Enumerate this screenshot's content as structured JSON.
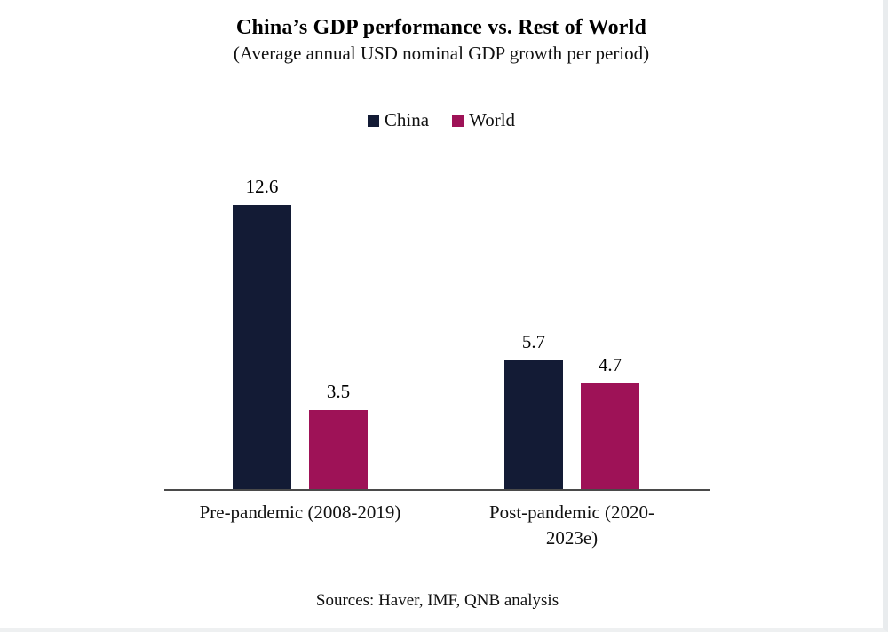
{
  "chart_data": {
    "type": "bar",
    "title": "China’s GDP performance vs. Rest of World",
    "subtitle": "(Average annual USD nominal GDP growth per period)",
    "categories": [
      "Pre-pandemic (2008-2019)",
      "Post-pandemic (2020-2023e)"
    ],
    "series": [
      {
        "name": "China",
        "color": "#131b35",
        "values": [
          12.6,
          5.7
        ]
      },
      {
        "name": "World",
        "color": "#9e1257",
        "values": [
          3.5,
          4.7
        ]
      }
    ],
    "ylim": [
      0,
      13
    ],
    "grid": false,
    "legend_position": "top-center",
    "value_labels": [
      [
        "12.6",
        "5.7"
      ],
      [
        "3.5",
        "4.7"
      ]
    ],
    "axis_color": "#4a4a4a"
  },
  "footer": {
    "sources": "Sources: Haver, IMF, QNB analysis"
  }
}
